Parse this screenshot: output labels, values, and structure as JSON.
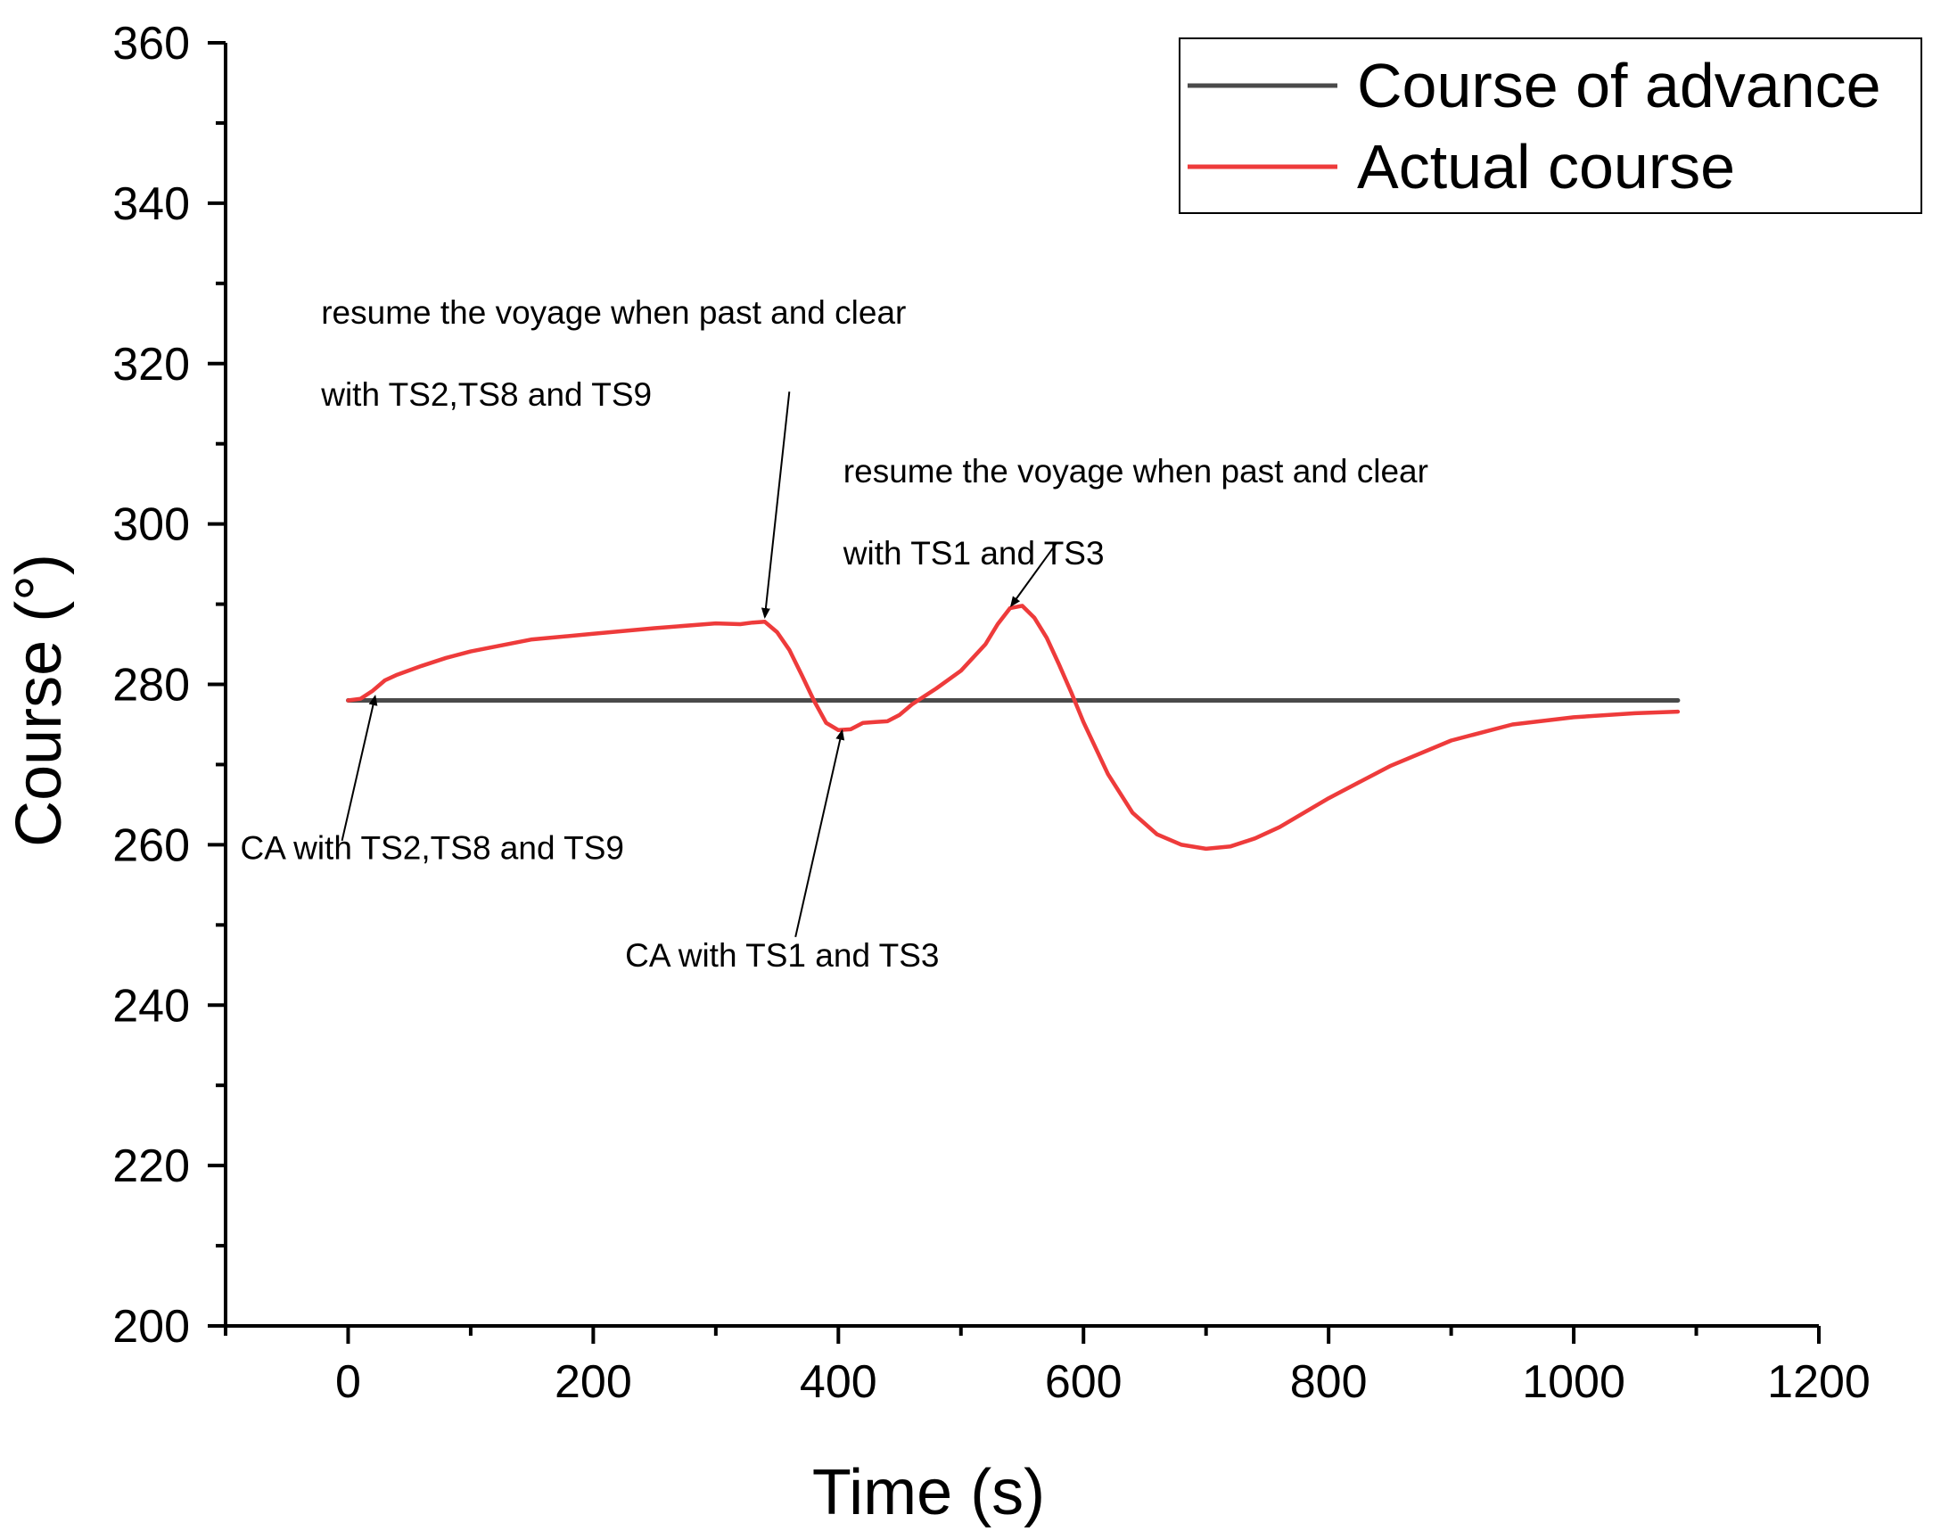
{
  "chart_data": {
    "type": "line",
    "title": "",
    "xlabel": "Time (s)",
    "ylabel": "Course (°)",
    "xlim": [
      -100,
      1200
    ],
    "ylim": [
      200,
      360
    ],
    "xticks": [
      0,
      200,
      400,
      600,
      800,
      1000,
      1200
    ],
    "xtick_labels": [
      "0",
      "200",
      "400",
      "600",
      "800",
      "1000",
      "1200"
    ],
    "yticks": [
      200,
      220,
      240,
      260,
      280,
      300,
      320,
      340,
      360
    ],
    "ytick_labels": [
      "200",
      "220",
      "240",
      "260",
      "280",
      "300",
      "320",
      "340",
      "360"
    ],
    "grid": false,
    "legend_position": "top-right",
    "series": [
      {
        "name": "Course of advance",
        "color": "#4a4a4a",
        "x": [
          0,
          1085
        ],
        "y": [
          278,
          278
        ]
      },
      {
        "name": "Actual course",
        "color": "#ee3b3b",
        "x": [
          0,
          10,
          20,
          30,
          40,
          60,
          80,
          100,
          150,
          200,
          250,
          300,
          320,
          330,
          340,
          350,
          360,
          370,
          380,
          390,
          400,
          410,
          420,
          430,
          440,
          450,
          460,
          470,
          480,
          500,
          520,
          530,
          540,
          550,
          560,
          570,
          580,
          590,
          600,
          620,
          640,
          660,
          680,
          700,
          720,
          740,
          760,
          800,
          850,
          900,
          950,
          1000,
          1050,
          1085
        ],
        "y": [
          278,
          278.2,
          279.2,
          280.5,
          281.2,
          282.3,
          283.3,
          284.1,
          285.6,
          286.3,
          287,
          287.6,
          287.5,
          287.7,
          287.8,
          286.5,
          284.3,
          281.2,
          278,
          275.2,
          274.3,
          274.4,
          275.2,
          275.3,
          275.4,
          276.2,
          277.5,
          278.5,
          279.5,
          281.7,
          285,
          287.5,
          289.5,
          289.8,
          288.3,
          285.8,
          282.5,
          279,
          275.3,
          268.8,
          264,
          261.3,
          260,
          259.5,
          259.8,
          260.8,
          262.2,
          265.8,
          269.8,
          273,
          275,
          275.9,
          276.4,
          276.6
        ]
      }
    ],
    "annotations": [
      {
        "lines": [
          "CA with TS2,TS8 and TS9"
        ],
        "text_anchor": [
          -88,
          258.2
        ],
        "arrow_from": [
          -5,
          260.5
        ],
        "arrow_to": [
          22,
          278.5
        ]
      },
      {
        "lines": [
          "resume the voyage when past and clear",
          "with TS2,TS8 and TS9"
        ],
        "text_anchor": [
          -22,
          325
        ],
        "arrow_from": [
          360,
          316.5
        ],
        "arrow_to": [
          340,
          288.4
        ]
      },
      {
        "lines": [
          "CA with TS1 and TS3"
        ],
        "text_anchor": [
          226,
          244.8
        ],
        "arrow_from": [
          365,
          248.5
        ],
        "arrow_to": [
          403,
          274.2
        ]
      },
      {
        "lines": [
          "resume the voyage when past and clear",
          "with TS1 and TS3"
        ],
        "text_anchor": [
          404,
          305.2
        ],
        "arrow_from": [
          578,
          297.6
        ],
        "arrow_to": [
          541,
          289.8
        ]
      }
    ]
  }
}
